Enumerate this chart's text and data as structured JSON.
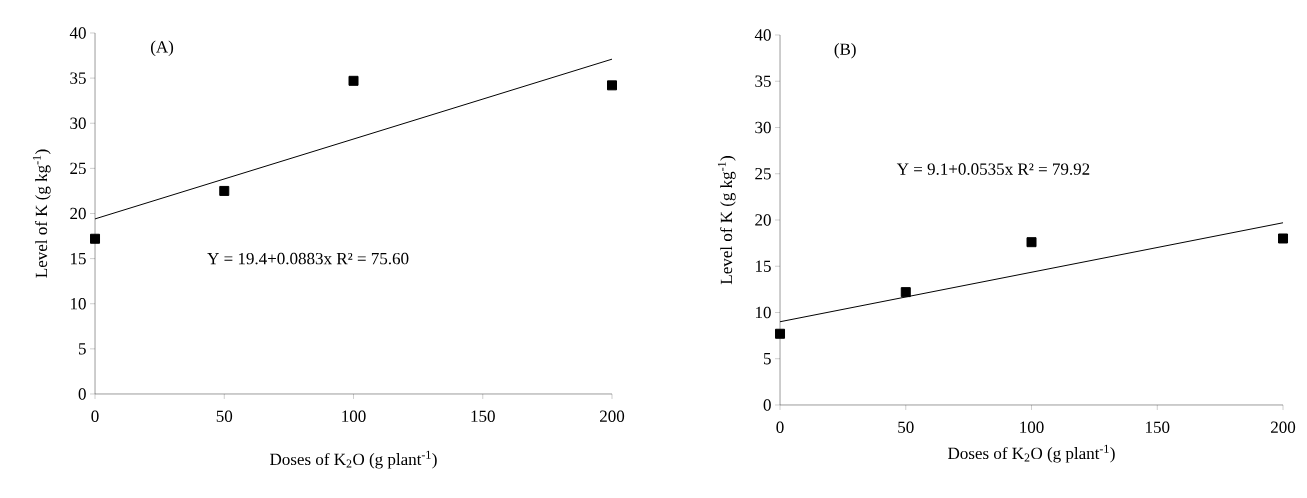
{
  "chart_data": [
    {
      "type": "scatter",
      "xlabel": "Doses of K$_{2}$O (g plant$^{-1}$)",
      "ylabel": "Level of K (g kg$^{-1}$)",
      "annotations": [
        "(A)",
        "Y = 19.4+0.0883x  R² = 75.60"
      ],
      "xlim": [
        0,
        200
      ],
      "ylim": [
        0,
        40
      ],
      "xticks": [
        0,
        50,
        100,
        150,
        200
      ],
      "yticks": [
        0,
        5,
        10,
        15,
        20,
        25,
        30,
        35,
        40
      ],
      "grid": false,
      "series": [
        {
          "marker": "square",
          "color": "#000000",
          "x": [
            0,
            50,
            100,
            200
          ],
          "values": [
            17.2,
            22.5,
            34.7,
            34.2
          ]
        },
        {
          "type": "line",
          "marker": "none",
          "color": "#000000",
          "x": [
            0,
            200
          ],
          "values": [
            19.4,
            37.1
          ]
        }
      ]
    },
    {
      "type": "scatter",
      "xlabel": "Doses of K$_{2}$O (g plant$^{-1}$)",
      "ylabel": "Level of K (g kg$^{-1}$)",
      "annotations": [
        "(B)",
        "Y = 9.1+0.0535x   R² = 79.92"
      ],
      "xlim": [
        0,
        200
      ],
      "ylim": [
        0,
        40
      ],
      "xticks": [
        0,
        50,
        100,
        150,
        200
      ],
      "yticks": [
        0,
        5,
        10,
        15,
        20,
        25,
        30,
        35,
        40
      ],
      "grid": false,
      "series": [
        {
          "marker": "square",
          "color": "#000000",
          "x": [
            0,
            50,
            100,
            200
          ],
          "values": [
            7.7,
            12.2,
            17.6,
            18.0
          ]
        },
        {
          "type": "line",
          "marker": "none",
          "color": "#000000",
          "x": [
            0,
            200
          ],
          "values": [
            9.0,
            19.7
          ]
        }
      ]
    }
  ]
}
